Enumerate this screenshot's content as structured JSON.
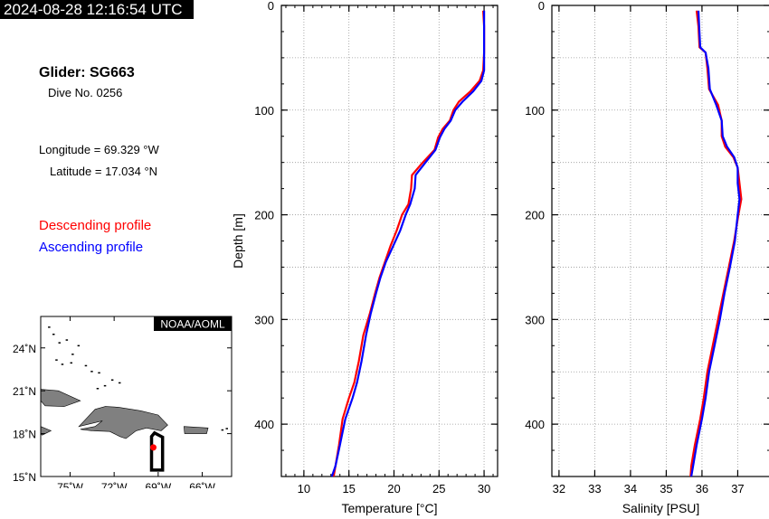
{
  "header": {
    "timestamp": "2024-08-28 12:16:54 UTC",
    "glider": "Glider: SG663",
    "dive": "Dive No. 0256",
    "longitude": "Longitude = 69.329 °W",
    "latitude": "Latitude = 17.034 °N"
  },
  "legend": {
    "descending": "Descending profile",
    "ascending": "Ascending profile",
    "descending_color": "#ff0000",
    "ascending_color": "#0000ff"
  },
  "map": {
    "credit": "NOAA/AOML",
    "lat_ticks": [
      "24˚N",
      "21˚N",
      "18˚N",
      "15˚N"
    ],
    "lon_ticks": [
      "75˚W",
      "72˚W",
      "69˚W",
      "66˚W"
    ],
    "lat_values": [
      24,
      21,
      18,
      15
    ],
    "lon_values": [
      -75,
      -72,
      -69,
      -66
    ],
    "xlim": [
      -77,
      -64
    ],
    "ylim": [
      15,
      26.2
    ],
    "land_color": "#808080",
    "position": {
      "lon": -69.329,
      "lat": 17.034
    },
    "track_box": {
      "lon": [
        -69.45,
        -68.7
      ],
      "lat": [
        15.45,
        18.05
      ]
    }
  },
  "chart_data": [
    {
      "type": "line",
      "title": "",
      "xlabel": "Temperature [°C]",
      "ylabel": "Depth [m]",
      "xlim": [
        7.5,
        31.5
      ],
      "ylim": [
        450,
        0
      ],
      "xticks": [
        10,
        15,
        20,
        25,
        30
      ],
      "yticks": [
        0,
        100,
        200,
        300,
        400
      ],
      "grid": true,
      "series": [
        {
          "name": "Descending profile",
          "color": "#ff0000",
          "points": [
            [
              29.9,
              5
            ],
            [
              30.0,
              20
            ],
            [
              30.0,
              45
            ],
            [
              29.9,
              62
            ],
            [
              29.5,
              72
            ],
            [
              28.5,
              82
            ],
            [
              27.2,
              92
            ],
            [
              26.6,
              100
            ],
            [
              26.2,
              110
            ],
            [
              25.4,
              118
            ],
            [
              24.9,
              126
            ],
            [
              24.5,
              138
            ],
            [
              23.2,
              150
            ],
            [
              22.0,
              162
            ],
            [
              21.9,
              175
            ],
            [
              21.6,
              190
            ],
            [
              20.9,
              200
            ],
            [
              20.3,
              215
            ],
            [
              19.6,
              230
            ],
            [
              19.0,
              245
            ],
            [
              18.4,
              260
            ],
            [
              17.9,
              275
            ],
            [
              17.3,
              295
            ],
            [
              16.6,
              315
            ],
            [
              16.1,
              340
            ],
            [
              15.6,
              360
            ],
            [
              15.0,
              375
            ],
            [
              14.3,
              395
            ],
            [
              13.9,
              420
            ],
            [
              13.5,
              440
            ],
            [
              13.3,
              450
            ]
          ]
        },
        {
          "name": "Ascending profile",
          "color": "#0000ff",
          "points": [
            [
              30.0,
              5
            ],
            [
              30.0,
              20
            ],
            [
              30.0,
              45
            ],
            [
              30.0,
              62
            ],
            [
              29.7,
              72
            ],
            [
              28.8,
              82
            ],
            [
              27.6,
              92
            ],
            [
              26.8,
              100
            ],
            [
              26.3,
              110
            ],
            [
              25.6,
              118
            ],
            [
              25.1,
              126
            ],
            [
              24.6,
              138
            ],
            [
              23.5,
              150
            ],
            [
              22.4,
              162
            ],
            [
              22.3,
              175
            ],
            [
              21.8,
              190
            ],
            [
              21.3,
              200
            ],
            [
              20.7,
              215
            ],
            [
              19.9,
              230
            ],
            [
              19.1,
              245
            ],
            [
              18.5,
              260
            ],
            [
              18.0,
              275
            ],
            [
              17.4,
              295
            ],
            [
              16.9,
              315
            ],
            [
              16.4,
              340
            ],
            [
              15.9,
              360
            ],
            [
              15.4,
              375
            ],
            [
              14.6,
              395
            ],
            [
              14.0,
              420
            ],
            [
              13.5,
              440
            ],
            [
              13.1,
              450
            ]
          ]
        }
      ]
    },
    {
      "type": "line",
      "title": "",
      "xlabel": "Salinity [PSU]",
      "ylabel": "",
      "xlim": [
        31.8,
        37.9
      ],
      "ylim": [
        450,
        0
      ],
      "xticks": [
        32,
        33,
        34,
        35,
        36,
        37
      ],
      "yticks": [
        0,
        100,
        200,
        300,
        400
      ],
      "grid": true,
      "series": [
        {
          "name": "Descending profile",
          "color": "#ff0000",
          "points": [
            [
              35.85,
              5
            ],
            [
              35.9,
              20
            ],
            [
              35.93,
              40
            ],
            [
              36.1,
              45
            ],
            [
              36.15,
              60
            ],
            [
              36.2,
              80
            ],
            [
              36.45,
              95
            ],
            [
              36.55,
              110
            ],
            [
              36.55,
              125
            ],
            [
              36.65,
              135
            ],
            [
              36.88,
              145
            ],
            [
              37.0,
              155
            ],
            [
              37.05,
              170
            ],
            [
              37.1,
              185
            ],
            [
              37.02,
              200
            ],
            [
              36.9,
              225
            ],
            [
              36.75,
              250
            ],
            [
              36.6,
              275
            ],
            [
              36.45,
              300
            ],
            [
              36.3,
              325
            ],
            [
              36.15,
              350
            ],
            [
              36.05,
              375
            ],
            [
              35.95,
              395
            ],
            [
              35.8,
              420
            ],
            [
              35.7,
              440
            ],
            [
              35.68,
              450
            ]
          ]
        },
        {
          "name": "Ascending profile",
          "color": "#0000ff",
          "points": [
            [
              35.9,
              5
            ],
            [
              35.92,
              20
            ],
            [
              35.95,
              40
            ],
            [
              36.1,
              45
            ],
            [
              36.18,
              60
            ],
            [
              36.22,
              80
            ],
            [
              36.4,
              95
            ],
            [
              36.55,
              110
            ],
            [
              36.58,
              125
            ],
            [
              36.7,
              135
            ],
            [
              36.9,
              145
            ],
            [
              37.0,
              155
            ],
            [
              37.0,
              170
            ],
            [
              37.05,
              185
            ],
            [
              37.0,
              200
            ],
            [
              36.92,
              225
            ],
            [
              36.78,
              250
            ],
            [
              36.63,
              275
            ],
            [
              36.5,
              300
            ],
            [
              36.35,
              325
            ],
            [
              36.2,
              350
            ],
            [
              36.1,
              375
            ],
            [
              36.0,
              395
            ],
            [
              35.85,
              420
            ],
            [
              35.75,
              440
            ],
            [
              35.7,
              450
            ]
          ]
        }
      ]
    }
  ]
}
